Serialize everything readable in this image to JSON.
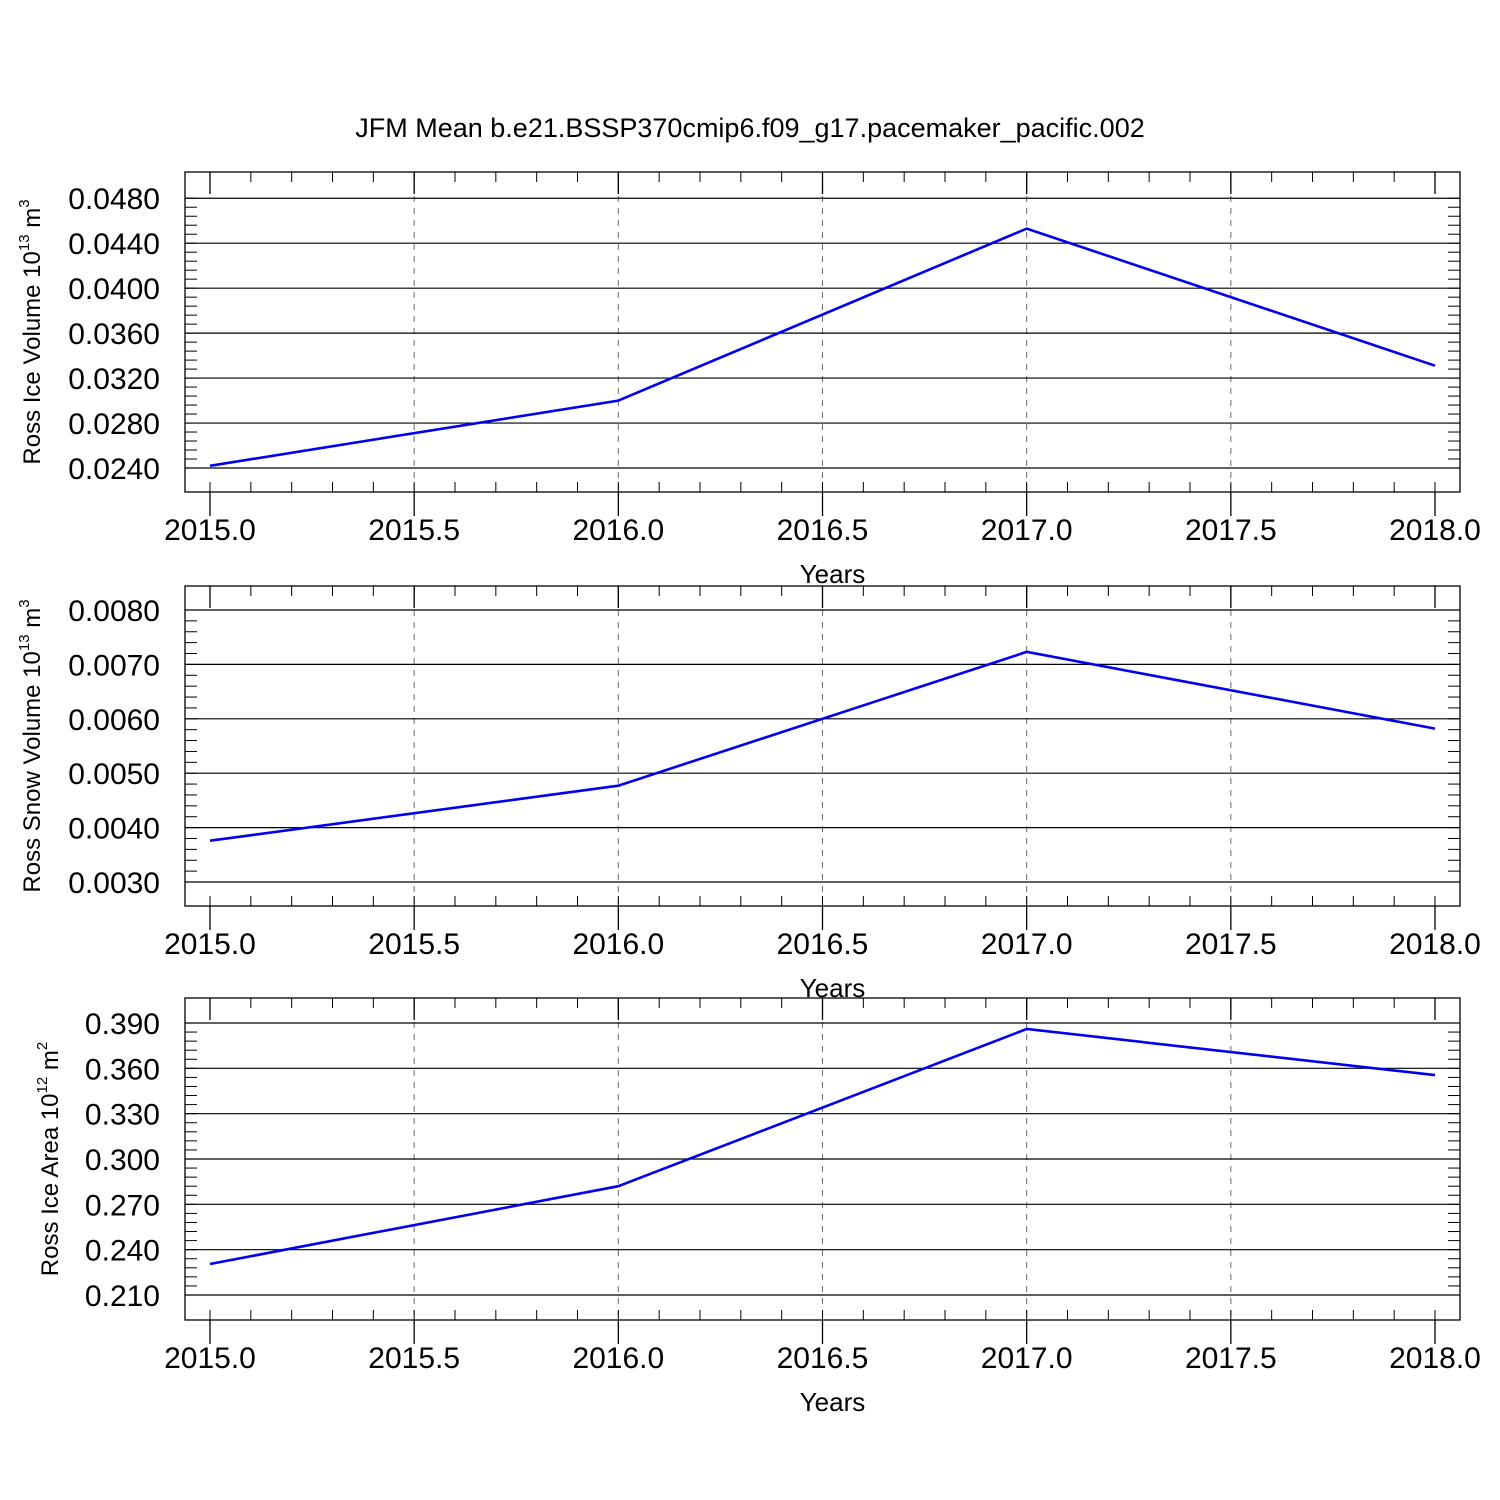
{
  "title": "JFM Mean b.e21.BSSP370cmip6.f09_g17.pacemaker_pacific.002",
  "style": {
    "line_color": "#0000ee",
    "grid_color": "#777777",
    "axis_color": "#000000"
  },
  "chart_data": [
    {
      "type": "line",
      "ylabel": {
        "text": "Ross Ice Volume 10",
        "exp": "13",
        "unit": " m",
        "unit_exp": "3"
      },
      "xlabel": "Years",
      "x": [
        2015,
        2016,
        2017,
        2018
      ],
      "y": [
        0.0242,
        0.03,
        0.0453,
        0.0331
      ],
      "xlim": [
        2015.0,
        2018.0
      ],
      "ylim": [
        0.024,
        0.0482
      ],
      "xticks": [
        "2015.0",
        "2015.5",
        "2016.0",
        "2016.5",
        "2017.0",
        "2017.5",
        "2018.0"
      ],
      "yticks": [
        "0.0240",
        "0.0280",
        "0.0320",
        "0.0360",
        "0.0400",
        "0.0440",
        "0.0480"
      ],
      "x_grid": "dashed",
      "y_grid": "none"
    },
    {
      "type": "line",
      "ylabel": {
        "text": "Ross Snow Volume 10",
        "exp": "13",
        "unit": " m",
        "unit_exp": "3"
      },
      "xlabel": "Years",
      "x": [
        2015,
        2016,
        2017,
        2018
      ],
      "y": [
        0.00376,
        0.00477,
        0.00723,
        0.00582
      ],
      "xlim": [
        2015.0,
        2018.0
      ],
      "ylim": [
        0.003,
        0.008
      ],
      "xticks": [
        "2015.0",
        "2015.5",
        "2016.0",
        "2016.5",
        "2017.0",
        "2017.5",
        "2018.0"
      ],
      "yticks": [
        "0.0030",
        "0.0040",
        "0.0050",
        "0.0060",
        "0.0070",
        "0.0080"
      ],
      "x_grid": "dashed",
      "y_grid": "none"
    },
    {
      "type": "line",
      "ylabel": {
        "text": "Ross Ice Area 10",
        "exp": "12",
        "unit": " m",
        "unit_exp": "2"
      },
      "xlabel": "Years",
      "x": [
        2015,
        2016,
        2017,
        2018
      ],
      "y": [
        0.2305,
        0.282,
        0.386,
        0.3555
      ],
      "xlim": [
        2015.0,
        2018.0
      ],
      "ylim": [
        0.21,
        0.39
      ],
      "xticks": [
        "2015.0",
        "2015.5",
        "2016.0",
        "2016.5",
        "2017.0",
        "2017.5",
        "2018.0"
      ],
      "yticks": [
        "0.210",
        "0.240",
        "0.270",
        "0.300",
        "0.330",
        "0.360",
        "0.390"
      ],
      "x_grid": "dashed",
      "y_grid": "none"
    }
  ]
}
